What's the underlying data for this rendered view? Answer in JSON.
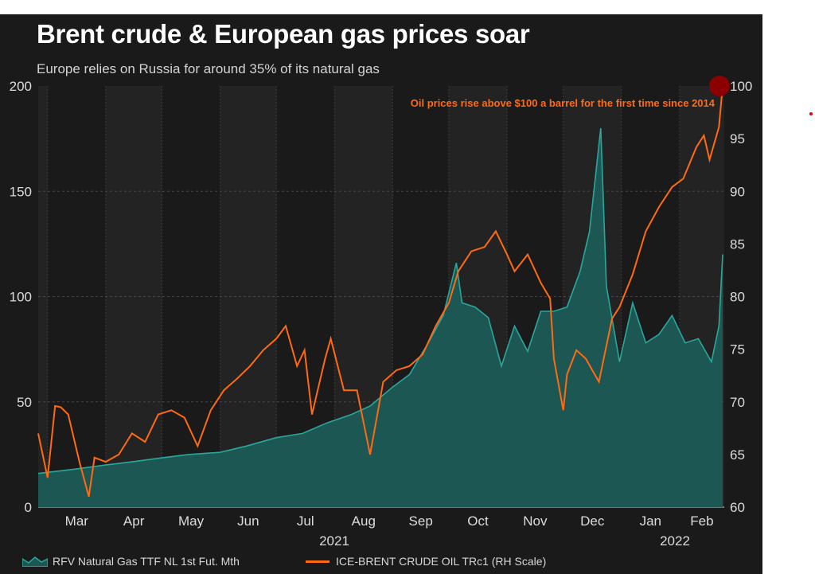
{
  "chart_data": {
    "type": "area+line",
    "title": "Brent crude & European gas prices soar",
    "subtitle": "Europe relies on Russia for around 35% of its natural gas",
    "annotation": "Oil prices rise above $100 a barrel for the first time since 2014",
    "x_range": [
      "2021-02-24",
      "2022-02-24"
    ],
    "x_tick_labels": [
      "Mar",
      "Apr",
      "May",
      "Jun",
      "Jul",
      "Aug",
      "Sep",
      "Oct",
      "Nov",
      "Dec",
      "Jan",
      "Feb"
    ],
    "x_year_labels": [
      "2021",
      "2022"
    ],
    "y_left": {
      "range": [
        0,
        200
      ],
      "ticks": [
        0,
        50,
        100,
        150,
        200
      ]
    },
    "y_right": {
      "range": [
        60,
        100
      ],
      "ticks": [
        60,
        65,
        70,
        75,
        80,
        85,
        90,
        95,
        100
      ]
    },
    "grid": true,
    "legend_position": "bottom",
    "series": [
      {
        "name": "RFV Natural Gas TTF NL 1st Fut. Mth",
        "axis": "left",
        "style": "area",
        "color": "#2aa79c",
        "fill": "#1d5753",
        "x": [
          "2021-02-24",
          "2021-03-15",
          "2021-04-01",
          "2021-04-15",
          "2021-05-01",
          "2021-05-15",
          "2021-06-01",
          "2021-06-15",
          "2021-07-01",
          "2021-07-15",
          "2021-07-28",
          "2021-08-10",
          "2021-08-20",
          "2021-09-01",
          "2021-09-10",
          "2021-09-20",
          "2021-09-28",
          "2021-10-05",
          "2021-10-08",
          "2021-10-15",
          "2021-10-22",
          "2021-10-29",
          "2021-11-05",
          "2021-11-12",
          "2021-11-19",
          "2021-11-26",
          "2021-12-03",
          "2021-12-10",
          "2021-12-15",
          "2021-12-21",
          "2021-12-24",
          "2021-12-31",
          "2022-01-07",
          "2022-01-14",
          "2022-01-21",
          "2022-01-28",
          "2022-02-04",
          "2022-02-11",
          "2022-02-18",
          "2022-02-22",
          "2022-02-24"
        ],
        "y": [
          16,
          18,
          20,
          21.5,
          23.4,
          25,
          26,
          29,
          33,
          35,
          40,
          44,
          48,
          57,
          63,
          78,
          91,
          116,
          97,
          95,
          90,
          67,
          86,
          74,
          93,
          93,
          95,
          112,
          131,
          180,
          105,
          69,
          97,
          78,
          82,
          91,
          78,
          80,
          69,
          86,
          120
        ]
      },
      {
        "name": "ICE-BRENT CRUDE OIL TRc1 (RH Scale)",
        "axis": "right",
        "style": "line",
        "color": "#ff6a13",
        "x": [
          "2021-02-24",
          "2021-03-01",
          "2021-03-05",
          "2021-03-08",
          "2021-03-12",
          "2021-03-18",
          "2021-03-23",
          "2021-03-26",
          "2021-04-01",
          "2021-04-08",
          "2021-04-15",
          "2021-04-22",
          "2021-04-29",
          "2021-05-06",
          "2021-05-13",
          "2021-05-20",
          "2021-05-27",
          "2021-06-03",
          "2021-06-10",
          "2021-06-17",
          "2021-06-24",
          "2021-07-01",
          "2021-07-06",
          "2021-07-12",
          "2021-07-16",
          "2021-07-20",
          "2021-07-27",
          "2021-07-30",
          "2021-08-06",
          "2021-08-13",
          "2021-08-20",
          "2021-08-27",
          "2021-09-03",
          "2021-09-10",
          "2021-09-17",
          "2021-09-24",
          "2021-10-01",
          "2021-10-06",
          "2021-10-13",
          "2021-10-20",
          "2021-10-26",
          "2021-11-01",
          "2021-11-05",
          "2021-11-12",
          "2021-11-19",
          "2021-11-24",
          "2021-11-26",
          "2021-12-01",
          "2021-12-03",
          "2021-12-08",
          "2021-12-13",
          "2021-12-20",
          "2021-12-27",
          "2021-12-31",
          "2022-01-07",
          "2022-01-14",
          "2022-01-21",
          "2022-01-28",
          "2022-02-03",
          "2022-02-10",
          "2022-02-14",
          "2022-02-17",
          "2022-02-22",
          "2022-02-24"
        ],
        "y": [
          67,
          62.8,
          69.6,
          69.5,
          68.8,
          64.3,
          61,
          64.7,
          64.3,
          65,
          67,
          66.2,
          68.8,
          69.2,
          68.5,
          65.8,
          69.2,
          71.1,
          72.2,
          73.4,
          74.9,
          76,
          77.2,
          73.4,
          74.9,
          68.8,
          74.1,
          76,
          71.1,
          71.1,
          65,
          71.9,
          73,
          73.4,
          74.5,
          77.2,
          79.4,
          82.4,
          84.3,
          84.7,
          86.2,
          84,
          82.4,
          84,
          81.3,
          79.8,
          74.1,
          69.2,
          72.6,
          74.9,
          74.1,
          71.9,
          77.9,
          79,
          82.1,
          86.2,
          88.5,
          90.4,
          91.2,
          94.2,
          95.3,
          93,
          96.1,
          100
        ]
      }
    ],
    "highlight_marker_color": "#8b0000"
  }
}
